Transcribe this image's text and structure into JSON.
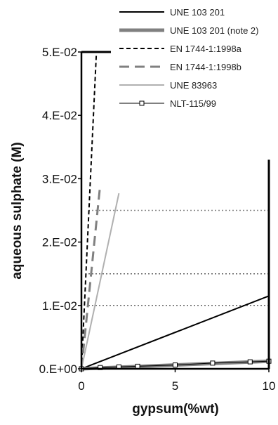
{
  "chart_data": {
    "type": "line",
    "title": "",
    "xlabel": "gypsum(%wt)",
    "ylabel": "aqueous sulphate (M)",
    "xlim": [
      0,
      10
    ],
    "ylim": [
      0,
      0.05
    ],
    "x_ticks": [
      "0",
      "5",
      "10"
    ],
    "y_ticks": [
      "0.E+00",
      "1.E-02",
      "2.E-02",
      "3.E-02",
      "4.E-02",
      "5.E-02"
    ],
    "reference_lines": [
      {
        "y": 0.01,
        "style": "dotted",
        "color": "#666666"
      },
      {
        "y": 0.015,
        "style": "dotted",
        "color": "#666666"
      },
      {
        "y": 0.025,
        "style": "dotted",
        "color": "#888888"
      }
    ],
    "legend_position": "top-right",
    "series": [
      {
        "name": "UNE 103 201",
        "color": "#000000",
        "dash": "",
        "width": 2,
        "marker": "none",
        "points": [
          [
            0,
            0
          ],
          [
            10,
            0.0115
          ]
        ]
      },
      {
        "name": "UNE 103 201 (note 2)",
        "color": "#808080",
        "dash": "",
        "width": 5,
        "marker": "none",
        "points": [
          [
            0,
            0
          ],
          [
            10,
            0.0012
          ]
        ]
      },
      {
        "name": "EN 1744-1:1998a",
        "color": "#000000",
        "dash": "6,4",
        "width": 2,
        "marker": "none",
        "points": [
          [
            0,
            0
          ],
          [
            0.8,
            0.05
          ]
        ]
      },
      {
        "name": "EN 1744-1:1998b",
        "color": "#808080",
        "dash": "14,8",
        "width": 3,
        "marker": "none",
        "points": [
          [
            0,
            0
          ],
          [
            1.0,
            0.029
          ]
        ]
      },
      {
        "name": "UNE 83963",
        "color": "#b0b0b0",
        "dash": "",
        "width": 2,
        "marker": "none",
        "points": [
          [
            0,
            0
          ],
          [
            2.0,
            0.0277
          ]
        ]
      },
      {
        "name": "NLT-115/99",
        "color": "#000000",
        "dash": "",
        "width": 1,
        "marker": "square",
        "points": [
          [
            0,
            0
          ],
          [
            1,
            0.0002
          ],
          [
            2,
            0.0003
          ],
          [
            3,
            0.0004
          ],
          [
            5,
            0.0006
          ],
          [
            7,
            0.0009
          ],
          [
            9,
            0.0011
          ],
          [
            10,
            0.0012
          ]
        ]
      }
    ]
  }
}
